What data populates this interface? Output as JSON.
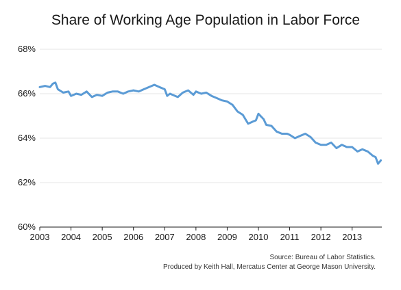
{
  "chart_data": {
    "type": "line",
    "title": "Share of Working Age Population in Labor Force",
    "xlabel": "",
    "ylabel": "",
    "xlim": [
      2003,
      2013.95
    ],
    "ylim": [
      60,
      68
    ],
    "x_ticks": [
      "2003",
      "2004",
      "2005",
      "2006",
      "2007",
      "2008",
      "2009",
      "2010",
      "2011",
      "2012",
      "2013"
    ],
    "y_ticks": [
      "60%",
      "62%",
      "64%",
      "66%",
      "68%"
    ],
    "grid": true,
    "legend": "none",
    "series_color": "#5b9bd5",
    "series": [
      {
        "x": [
          2003.0,
          2003.17,
          2003.33,
          2003.42,
          2003.5,
          2003.58,
          2003.75,
          2003.92,
          2004.0,
          2004.17,
          2004.33,
          2004.5,
          2004.67,
          2004.83,
          2005.0,
          2005.17,
          2005.33,
          2005.5,
          2005.67,
          2005.83,
          2006.0,
          2006.17,
          2006.33,
          2006.5,
          2006.67,
          2006.83,
          2007.0,
          2007.08,
          2007.17,
          2007.25,
          2007.42,
          2007.58,
          2007.75,
          2007.92,
          2008.0,
          2008.17,
          2008.33,
          2008.5,
          2008.67,
          2008.83,
          2009.0,
          2009.17,
          2009.33,
          2009.5,
          2009.67,
          2009.83,
          2009.92,
          2010.0,
          2010.17,
          2010.25,
          2010.42,
          2010.58,
          2010.75,
          2010.92,
          2011.0,
          2011.17,
          2011.33,
          2011.5,
          2011.67,
          2011.83,
          2012.0,
          2012.17,
          2012.33,
          2012.5,
          2012.67,
          2012.83,
          2013.0,
          2013.17,
          2013.33,
          2013.5,
          2013.67,
          2013.75,
          2013.83,
          2013.92
        ],
        "y": [
          66.3,
          66.35,
          66.3,
          66.45,
          66.5,
          66.2,
          66.05,
          66.1,
          65.9,
          66.0,
          65.95,
          66.1,
          65.85,
          65.95,
          65.9,
          66.05,
          66.1,
          66.1,
          66.0,
          66.1,
          66.15,
          66.1,
          66.2,
          66.3,
          66.4,
          66.3,
          66.2,
          65.9,
          66.0,
          65.95,
          65.85,
          66.05,
          66.15,
          65.95,
          66.1,
          66.0,
          66.05,
          65.9,
          65.8,
          65.7,
          65.65,
          65.5,
          65.2,
          65.05,
          64.65,
          64.75,
          64.8,
          65.1,
          64.85,
          64.6,
          64.55,
          64.3,
          64.2,
          64.2,
          64.15,
          64.0,
          64.1,
          64.2,
          64.05,
          63.8,
          63.7,
          63.7,
          63.8,
          63.55,
          63.7,
          63.6,
          63.6,
          63.4,
          63.5,
          63.4,
          63.2,
          63.15,
          62.85,
          63.0
        ]
      }
    ]
  },
  "source": {
    "line1": "Source: Bureau of Labor Statistics.",
    "line2": "Produced by Keith Hall, Mercatus Center at George Mason University."
  }
}
